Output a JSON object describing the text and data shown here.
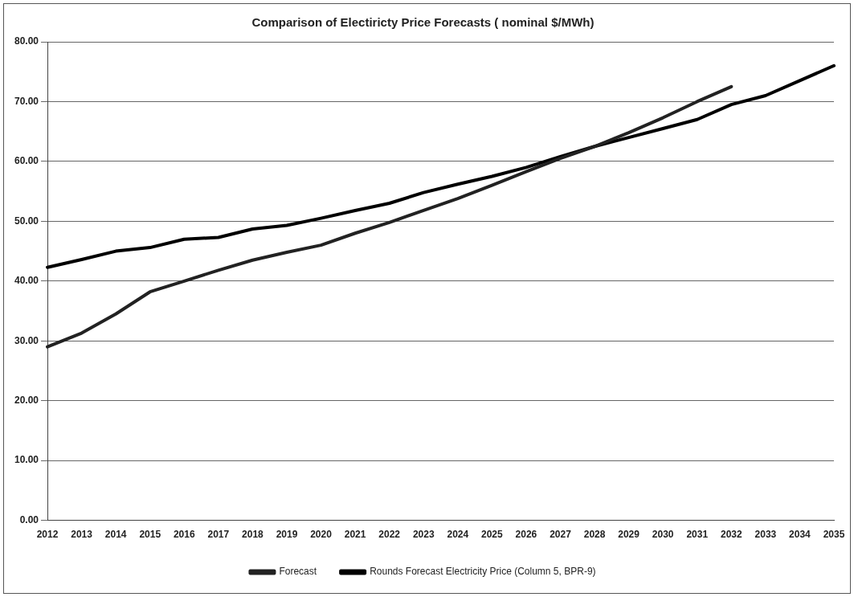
{
  "chart_data": {
    "type": "line",
    "title": "Comparison of Electiricty Price Forecasts ( nominal $/MWh)",
    "categories": [
      "2012",
      "2013",
      "2014",
      "2015",
      "2016",
      "2017",
      "2018",
      "2019",
      "2020",
      "2021",
      "2022",
      "2023",
      "2024",
      "2025",
      "2026",
      "2027",
      "2028",
      "2029",
      "2030",
      "2031",
      "2032",
      "2033",
      "2034",
      "2035"
    ],
    "series": [
      {
        "name": "Forecast",
        "color": "#222222",
        "values": [
          29,
          31.3,
          34.5,
          38.2,
          40,
          41.8,
          43.5,
          44.8,
          46,
          48,
          49.8,
          51.8,
          53.8,
          56,
          58.3,
          60.5,
          62.5,
          64.8,
          67.3,
          70,
          72.5,
          null,
          null,
          null
        ]
      },
      {
        "name": "Rounds Forecast Electricity Price (Column 5, BPR-9)",
        "color": "#000000",
        "values": [
          42.3,
          43.6,
          45,
          45.6,
          47,
          47.3,
          48.7,
          49.3,
          50.5,
          51.8,
          53,
          54.8,
          56.2,
          57.5,
          59,
          60.8,
          62.5,
          64,
          65.5,
          67,
          69.5,
          71,
          73.5,
          76
        ]
      }
    ],
    "ylim": [
      0,
      80
    ],
    "yticks": [
      {
        "value": 0,
        "label": "0.00"
      },
      {
        "value": 10,
        "label": "10.00"
      },
      {
        "value": 20,
        "label": "20.00"
      },
      {
        "value": 30,
        "label": "30.00"
      },
      {
        "value": 40,
        "label": "40.00"
      },
      {
        "value": 50,
        "label": "50.00"
      },
      {
        "value": 60,
        "label": "60.00"
      },
      {
        "value": 70,
        "label": "70.00"
      },
      {
        "value": 80,
        "label": "80.00"
      }
    ],
    "grid": "y",
    "legend": "bottom",
    "marker": "none",
    "line_style": "solid"
  }
}
